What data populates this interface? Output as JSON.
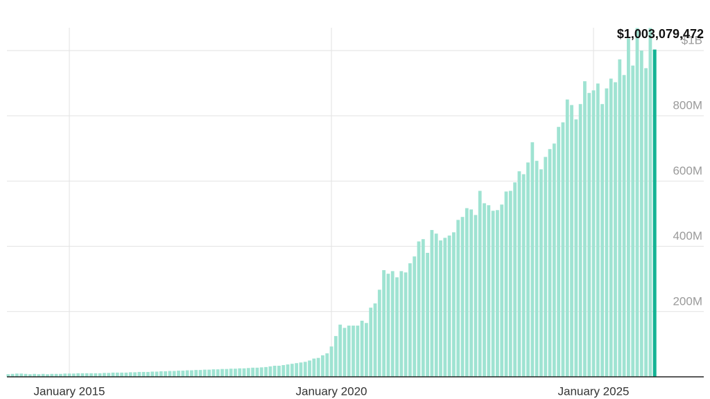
{
  "chart_data": {
    "type": "bar",
    "x": [
      "2013-11",
      "2013-12",
      "2014-01",
      "2014-02",
      "2014-03",
      "2014-04",
      "2014-05",
      "2014-06",
      "2014-07",
      "2014-08",
      "2014-09",
      "2014-10",
      "2014-11",
      "2014-12",
      "2015-01",
      "2015-02",
      "2015-03",
      "2015-04",
      "2015-05",
      "2015-06",
      "2015-07",
      "2015-08",
      "2015-09",
      "2015-10",
      "2015-11",
      "2015-12",
      "2016-01",
      "2016-02",
      "2016-03",
      "2016-04",
      "2016-05",
      "2016-06",
      "2016-07",
      "2016-08",
      "2016-09",
      "2016-10",
      "2016-11",
      "2016-12",
      "2017-01",
      "2017-02",
      "2017-03",
      "2017-04",
      "2017-05",
      "2017-06",
      "2017-07",
      "2017-08",
      "2017-09",
      "2017-10",
      "2017-11",
      "2017-12",
      "2018-01",
      "2018-02",
      "2018-03",
      "2018-04",
      "2018-05",
      "2018-06",
      "2018-07",
      "2018-08",
      "2018-09",
      "2018-10",
      "2018-11",
      "2018-12",
      "2019-01",
      "2019-02",
      "2019-03",
      "2019-04",
      "2019-05",
      "2019-06",
      "2019-07",
      "2019-08",
      "2019-09",
      "2019-10",
      "2019-11",
      "2019-12",
      "2020-01",
      "2020-02",
      "2020-03",
      "2020-04",
      "2020-05",
      "2020-06",
      "2020-07",
      "2020-08",
      "2020-09",
      "2020-10",
      "2020-11",
      "2020-12",
      "2021-01",
      "2021-02",
      "2021-03",
      "2021-04",
      "2021-05",
      "2021-06",
      "2021-07",
      "2021-08",
      "2021-09",
      "2021-10",
      "2021-11",
      "2021-12",
      "2022-01",
      "2022-02",
      "2022-03",
      "2022-04",
      "2022-05",
      "2022-06",
      "2022-07",
      "2022-08",
      "2022-09",
      "2022-10",
      "2022-11",
      "2022-12",
      "2023-01",
      "2023-02",
      "2023-03",
      "2023-04",
      "2023-05",
      "2023-06",
      "2023-07",
      "2023-08",
      "2023-09",
      "2023-10",
      "2023-11",
      "2023-12",
      "2024-01",
      "2024-02",
      "2024-03",
      "2024-04",
      "2024-05",
      "2024-06",
      "2024-07",
      "2024-08",
      "2024-09",
      "2024-10",
      "2024-11",
      "2024-12",
      "2025-01",
      "2025-02",
      "2025-03",
      "2025-04",
      "2025-05",
      "2025-06",
      "2025-07",
      "2025-08",
      "2025-09",
      "2025-10",
      "2025-11",
      "2025-12",
      "2026-01",
      "2026-02",
      "2026-03"
    ],
    "values": [
      8000000,
      9000000,
      10000000,
      10000000,
      9000000,
      8000000,
      9000000,
      8000000,
      9000000,
      8000000,
      9000000,
      9000000,
      9000000,
      10000000,
      10000000,
      10000000,
      11000000,
      11000000,
      11000000,
      11000000,
      11000000,
      11000000,
      12000000,
      12000000,
      13000000,
      13000000,
      13000000,
      13000000,
      14000000,
      14000000,
      15000000,
      15000000,
      15000000,
      16000000,
      16000000,
      17000000,
      17000000,
      18000000,
      18000000,
      19000000,
      19000000,
      20000000,
      20000000,
      21000000,
      21000000,
      22000000,
      22000000,
      23000000,
      23000000,
      24000000,
      24000000,
      25000000,
      25000000,
      26000000,
      26000000,
      27000000,
      28000000,
      28000000,
      29000000,
      30000000,
      32000000,
      34000000,
      34000000,
      36000000,
      38000000,
      40000000,
      42000000,
      44000000,
      46000000,
      50000000,
      56000000,
      58000000,
      66000000,
      72000000,
      93000000,
      125000000,
      160000000,
      150000000,
      157000000,
      157000000,
      157000000,
      172000000,
      165000000,
      212000000,
      225000000,
      267000000,
      327000000,
      316000000,
      324000000,
      305000000,
      324000000,
      320000000,
      348000000,
      369000000,
      415000000,
      422000000,
      380000000,
      450000000,
      439000000,
      418000000,
      426000000,
      433000000,
      443000000,
      481000000,
      490000000,
      517000000,
      513000000,
      496000000,
      570000000,
      532000000,
      526000000,
      509000000,
      511000000,
      528000000,
      568000000,
      570000000,
      596000000,
      630000000,
      621000000,
      657000000,
      719000000,
      662000000,
      636000000,
      674000000,
      698000000,
      715000000,
      766000000,
      780000000,
      850000000,
      833000000,
      789000000,
      836000000,
      906000000,
      870000000,
      878000000,
      899000000,
      836000000,
      884000000,
      914000000,
      903000000,
      973000000,
      925000000,
      1037000000,
      954000000,
      1069000000,
      1000000000,
      946000000,
      1069000000,
      1003079472
    ],
    "value_labels": [
      null,
      null,
      null,
      null,
      null,
      null,
      null,
      null,
      null,
      null,
      null,
      null,
      null,
      null,
      null,
      null,
      null,
      null,
      null,
      null,
      null,
      null,
      null,
      null,
      null,
      null,
      null,
      null,
      null,
      null,
      null,
      null,
      null,
      null,
      null,
      null,
      null,
      null,
      null,
      null,
      null,
      null,
      null,
      null,
      null,
      null,
      null,
      null,
      null,
      null,
      null,
      null,
      null,
      null,
      null,
      null,
      null,
      null,
      null,
      null,
      null,
      null,
      null,
      null,
      null,
      null,
      null,
      null,
      null,
      null,
      null,
      null,
      null,
      null,
      null,
      null,
      null,
      null,
      null,
      null,
      null,
      null,
      null,
      null,
      null,
      null,
      null,
      null,
      null,
      null,
      null,
      null,
      null,
      null,
      null,
      null,
      null,
      null,
      null,
      null,
      null,
      null,
      null,
      null,
      null,
      null,
      null,
      null,
      null,
      null,
      null,
      null,
      null,
      null,
      null,
      null,
      null,
      null,
      null,
      null,
      null,
      null,
      null,
      null,
      null,
      null,
      null,
      null,
      null,
      null,
      null,
      null,
      null,
      null,
      null,
      null,
      null,
      null,
      null,
      null,
      null,
      null,
      null,
      null,
      null,
      null,
      null,
      null,
      "$1,003,079,472"
    ],
    "color": "#9fe3d2",
    "highlight_color": "#14b394",
    "xticks": [
      {
        "value": "2015-01",
        "label": "January 2015"
      },
      {
        "value": "2020-01",
        "label": "January 2020"
      },
      {
        "value": "2025-01",
        "label": "January 2025"
      }
    ],
    "ylim": [
      0,
      1070000000
    ],
    "yticks": [
      {
        "value": 200000000,
        "label": "200M"
      },
      {
        "value": 400000000,
        "label": "400M"
      },
      {
        "value": 600000000,
        "label": "600M"
      },
      {
        "value": 800000000,
        "label": "800M"
      },
      {
        "value": 1000000000,
        "label": "$1B"
      }
    ],
    "grid": true
  }
}
